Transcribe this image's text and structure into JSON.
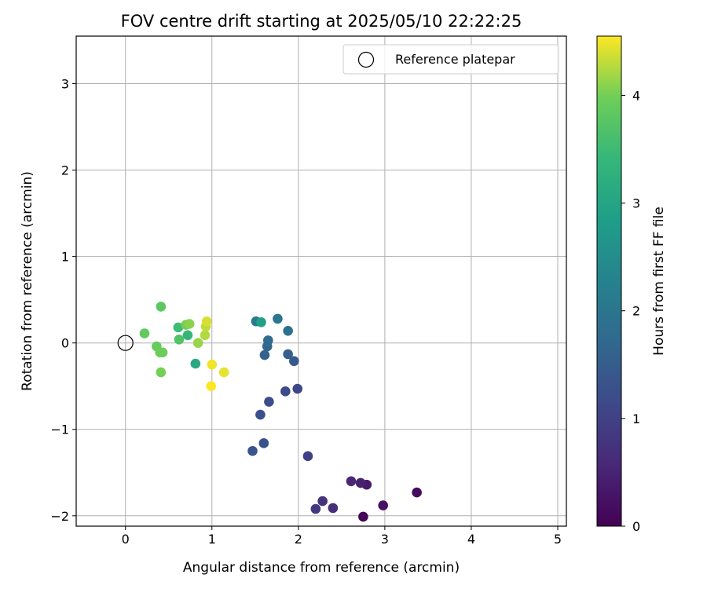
{
  "chart_data": {
    "type": "scatter",
    "title": "FOV centre drift starting at 2025/05/10 22:22:25",
    "xlabel": "Angular distance from reference (arcmin)",
    "ylabel": "Rotation from reference (arcmin)",
    "xlim": [
      -0.57,
      5.1
    ],
    "ylim": [
      -2.12,
      3.55
    ],
    "xticks": [
      0,
      1,
      2,
      3,
      4,
      5
    ],
    "yticks": [
      -2,
      -1,
      0,
      1,
      2,
      3
    ],
    "grid": true,
    "legend": {
      "position": "top-right",
      "entries": [
        "Reference platepar"
      ]
    },
    "reference_point": {
      "x": 0,
      "y": 0,
      "label": "Reference platepar"
    },
    "colorbar": {
      "label": "Hours from first FF file",
      "range": [
        0,
        4.55
      ],
      "ticks": [
        0,
        1,
        2,
        3,
        4
      ],
      "colormap": "viridis"
    },
    "points": [
      {
        "x": 2.75,
        "y": -2.01,
        "c": 0.05
      },
      {
        "x": 3.37,
        "y": -1.73,
        "c": 0.15
      },
      {
        "x": 2.98,
        "y": -1.88,
        "c": 0.25
      },
      {
        "x": 2.79,
        "y": -1.64,
        "c": 0.35
      },
      {
        "x": 2.72,
        "y": -1.62,
        "c": 0.45
      },
      {
        "x": 2.61,
        "y": -1.6,
        "c": 0.55
      },
      {
        "x": 2.4,
        "y": -1.91,
        "c": 0.65
      },
      {
        "x": 2.28,
        "y": -1.83,
        "c": 0.75
      },
      {
        "x": 2.2,
        "y": -1.92,
        "c": 0.85
      },
      {
        "x": 2.11,
        "y": -1.31,
        "c": 1.0
      },
      {
        "x": 1.99,
        "y": -0.53,
        "c": 1.1
      },
      {
        "x": 1.85,
        "y": -0.56,
        "c": 1.15
      },
      {
        "x": 1.66,
        "y": -0.68,
        "c": 1.2
      },
      {
        "x": 1.56,
        "y": -0.83,
        "c": 1.25
      },
      {
        "x": 1.6,
        "y": -1.16,
        "c": 1.3
      },
      {
        "x": 1.47,
        "y": -1.25,
        "c": 1.35
      },
      {
        "x": 1.95,
        "y": -0.21,
        "c": 1.45
      },
      {
        "x": 1.88,
        "y": -0.13,
        "c": 1.55
      },
      {
        "x": 1.61,
        "y": -0.14,
        "c": 1.6
      },
      {
        "x": 1.64,
        "y": -0.04,
        "c": 1.7
      },
      {
        "x": 1.65,
        "y": 0.03,
        "c": 1.8
      },
      {
        "x": 1.88,
        "y": 0.14,
        "c": 1.9
      },
      {
        "x": 1.76,
        "y": 0.28,
        "c": 2.0
      },
      {
        "x": 1.51,
        "y": 0.25,
        "c": 2.1
      },
      {
        "x": 1.57,
        "y": 0.24,
        "c": 2.9
      },
      {
        "x": 0.81,
        "y": -0.24,
        "c": 3.1
      },
      {
        "x": 0.72,
        "y": 0.09,
        "c": 3.4
      },
      {
        "x": 0.61,
        "y": 0.18,
        "c": 3.5
      },
      {
        "x": 0.62,
        "y": 0.04,
        "c": 3.7
      },
      {
        "x": 0.41,
        "y": 0.42,
        "c": 3.8
      },
      {
        "x": 0.22,
        "y": 0.11,
        "c": 3.85
      },
      {
        "x": 0.36,
        "y": -0.04,
        "c": 3.9
      },
      {
        "x": 0.4,
        "y": -0.11,
        "c": 3.95
      },
      {
        "x": 0.43,
        "y": -0.11,
        "c": 3.95
      },
      {
        "x": 0.41,
        "y": -0.34,
        "c": 4.0
      },
      {
        "x": 0.7,
        "y": 0.21,
        "c": 4.0
      },
      {
        "x": 0.74,
        "y": 0.22,
        "c": 4.1
      },
      {
        "x": 0.84,
        "y": 0.0,
        "c": 4.15
      },
      {
        "x": 0.92,
        "y": 0.09,
        "c": 4.25
      },
      {
        "x": 0.93,
        "y": 0.19,
        "c": 4.3
      },
      {
        "x": 0.94,
        "y": 0.25,
        "c": 4.4
      },
      {
        "x": 1.14,
        "y": -0.34,
        "c": 4.45
      },
      {
        "x": 1.0,
        "y": -0.25,
        "c": 4.5
      },
      {
        "x": 0.99,
        "y": -0.5,
        "c": 4.55
      }
    ]
  }
}
